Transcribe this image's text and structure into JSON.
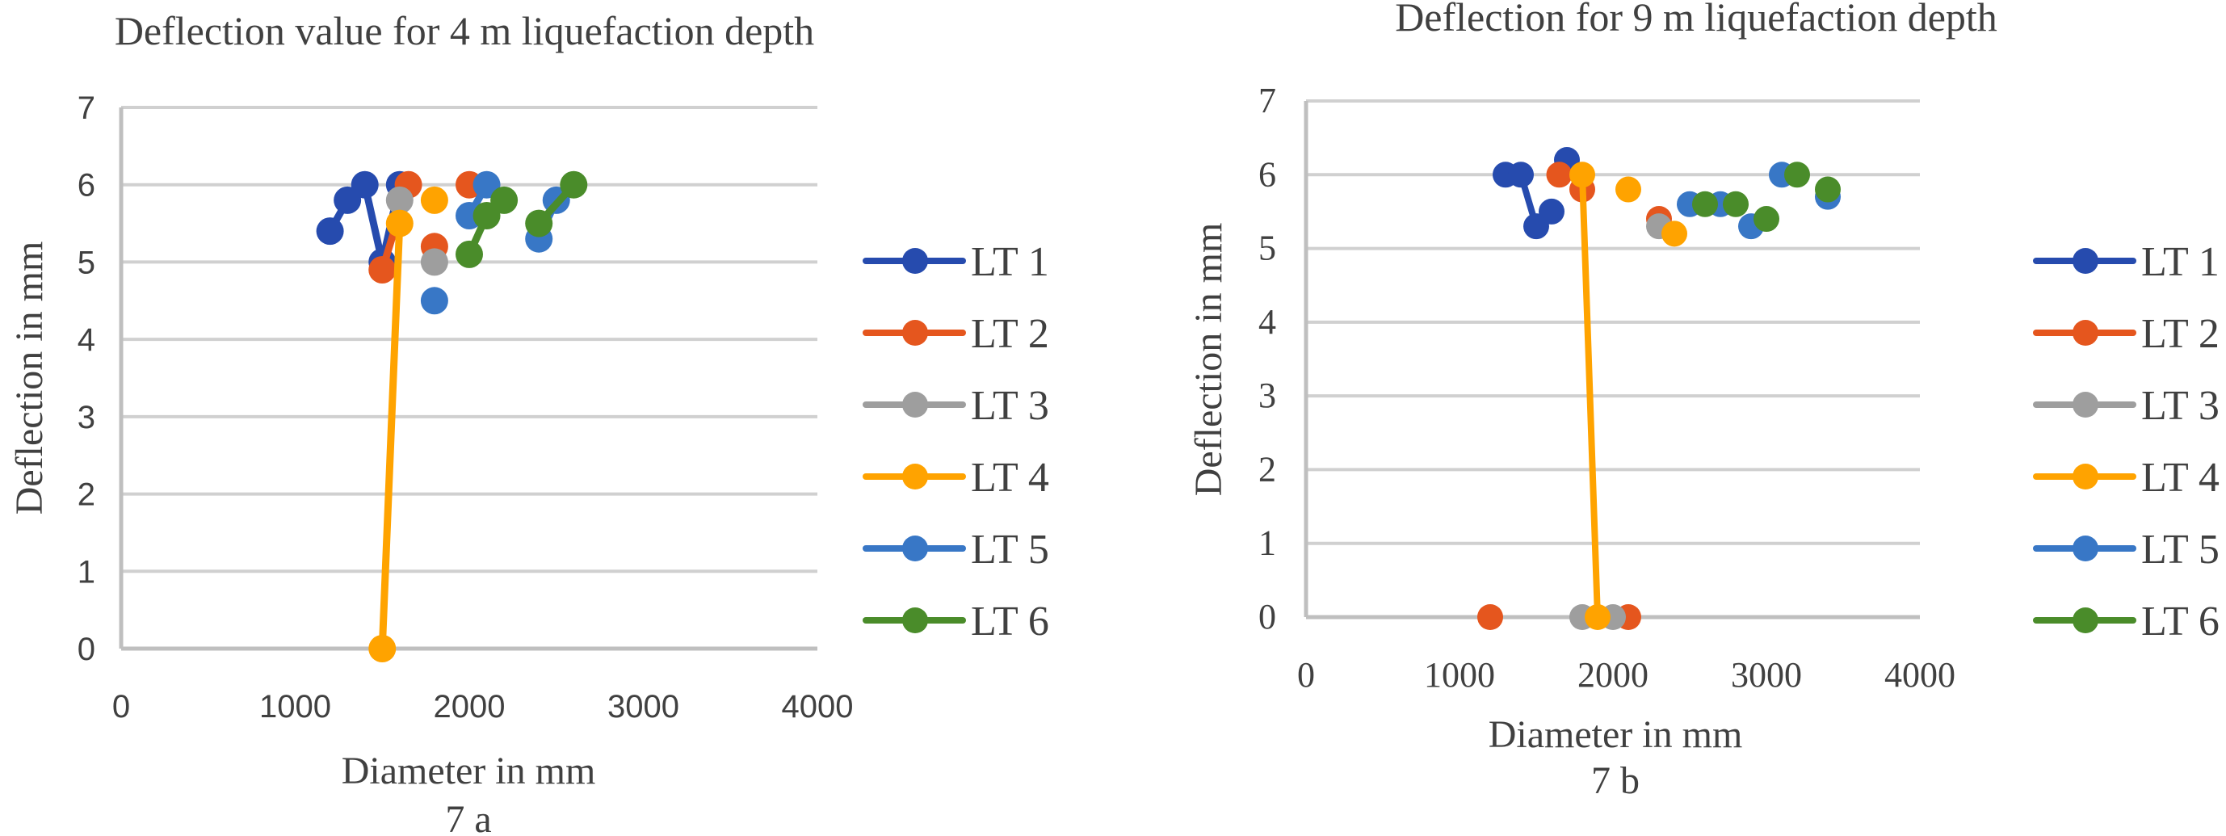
{
  "chart_data": [
    {
      "type": "line",
      "panel": "7 a",
      "title": "Deflection value for 4 m liquefaction depth",
      "xlabel": "Diameter in mm",
      "ylabel": "Deflection in mm",
      "caption": "7 a",
      "xlim": [
        0,
        4000
      ],
      "ylim": [
        0,
        7
      ],
      "xticks": [
        "0",
        "1000",
        "2000",
        "3000",
        "4000"
      ],
      "yticks": [
        "0",
        "1",
        "2",
        "3",
        "4",
        "5",
        "6",
        "7"
      ],
      "grid": true,
      "legend_position": "right",
      "series": [
        {
          "name": "LT 1",
          "color": "#264BAE",
          "points": [
            [
              1200,
              5.4
            ],
            [
              1300,
              5.8
            ],
            [
              1400,
              6.0
            ],
            [
              1500,
              5.0
            ],
            [
              1600,
              6.0
            ]
          ]
        },
        {
          "name": "LT 2",
          "color": "#E5561E",
          "points": [
            [
              1500,
              4.9
            ],
            [
              1650,
              6.0
            ],
            null,
            [
              1800,
              5.2
            ],
            null,
            [
              2000,
              6.0
            ]
          ]
        },
        {
          "name": "LT 3",
          "color": "#9E9E9E",
          "points": [
            [
              1600,
              5.8
            ],
            null,
            [
              1800,
              5.0
            ]
          ]
        },
        {
          "name": "LT 4",
          "color": "#FFA300",
          "points": [
            [
              1500,
              0
            ],
            [
              1600,
              5.5
            ],
            null,
            [
              1800,
              5.8
            ]
          ]
        },
        {
          "name": "LT 5",
          "color": "#3877C6",
          "points": [
            [
              1800,
              4.5
            ],
            null,
            [
              2000,
              5.6
            ],
            [
              2100,
              6.0
            ],
            null,
            [
              2400,
              5.3
            ],
            [
              2500,
              5.8
            ]
          ]
        },
        {
          "name": "LT 6",
          "color": "#4A8C2A",
          "points": [
            [
              2000,
              5.1
            ],
            [
              2100,
              5.6
            ],
            [
              2200,
              5.8
            ],
            null,
            [
              2400,
              5.5
            ],
            [
              2600,
              6.0
            ]
          ]
        }
      ]
    },
    {
      "type": "line",
      "panel": "7 b",
      "title": "Deflection for 9 m liquefaction depth",
      "xlabel": "Diameter in mm",
      "ylabel": "Deflection in mm",
      "caption": "7 b",
      "xlim": [
        0,
        4000
      ],
      "ylim": [
        0,
        7
      ],
      "xticks": [
        "0",
        "1000",
        "2000",
        "3000",
        "4000"
      ],
      "yticks": [
        "0",
        "1",
        "2",
        "3",
        "4",
        "5",
        "6",
        "7"
      ],
      "grid": true,
      "legend_position": "right",
      "series": [
        {
          "name": "LT 1",
          "color": "#264BAE",
          "points": [
            [
              1300,
              6.0
            ],
            [
              1400,
              6.0
            ],
            [
              1500,
              5.3
            ],
            [
              1600,
              5.5
            ],
            null,
            [
              1700,
              6.2
            ]
          ]
        },
        {
          "name": "LT 2",
          "color": "#E5561E",
          "points": [
            [
              1200,
              0
            ],
            null,
            [
              1650,
              6.0
            ],
            null,
            [
              1800,
              5.8
            ],
            null,
            [
              2100,
              0
            ],
            null,
            [
              2300,
              5.4
            ]
          ]
        },
        {
          "name": "LT 3",
          "color": "#9E9E9E",
          "points": [
            [
              1800,
              0
            ],
            null,
            [
              2000,
              0
            ],
            null,
            [
              2300,
              5.3
            ]
          ]
        },
        {
          "name": "LT 4",
          "color": "#FFA300",
          "points": [
            [
              1800,
              6.0
            ],
            [
              1900,
              0
            ],
            null,
            [
              2100,
              5.8
            ],
            null,
            [
              2400,
              5.2
            ]
          ]
        },
        {
          "name": "LT 5",
          "color": "#3877C6",
          "points": [
            [
              2500,
              5.6
            ],
            null,
            [
              2700,
              5.6
            ],
            null,
            [
              2900,
              5.3
            ],
            null,
            [
              3100,
              6.0
            ],
            null,
            [
              3400,
              5.7
            ]
          ]
        },
        {
          "name": "LT 6",
          "color": "#4A8C2A",
          "points": [
            [
              2600,
              5.6
            ],
            null,
            [
              2800,
              5.6
            ],
            null,
            [
              3000,
              5.4
            ],
            null,
            [
              3200,
              6.0
            ],
            null,
            [
              3400,
              5.8
            ]
          ]
        }
      ]
    }
  ]
}
